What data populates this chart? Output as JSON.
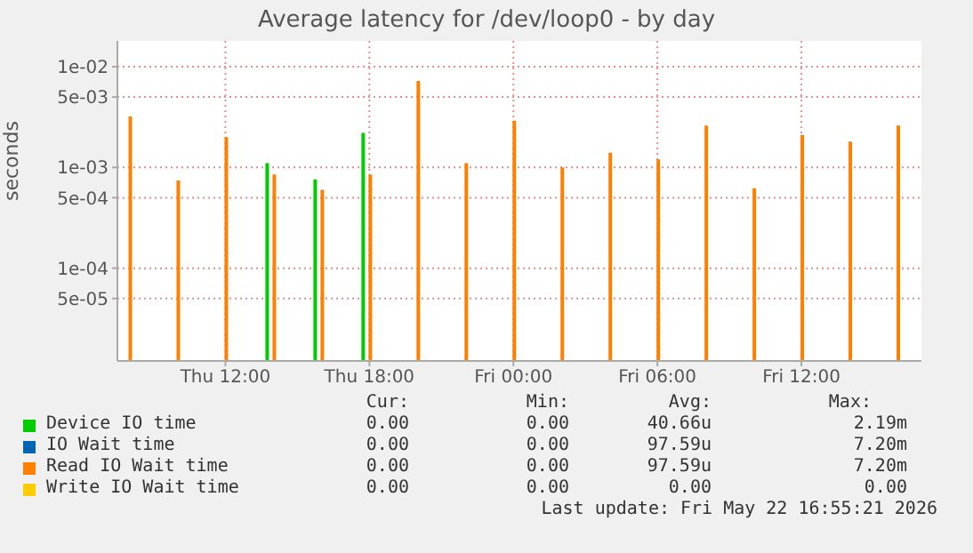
{
  "chart_data": {
    "type": "bar",
    "title": "Average latency for /dev/loop0 - by day",
    "ylabel": "seconds",
    "x": [
      "2026-05-21T08:00",
      "2026-05-21T10:00",
      "2026-05-21T12:00",
      "2026-05-21T14:00",
      "2026-05-21T16:00",
      "2026-05-21T18:00",
      "2026-05-21T20:00",
      "2026-05-21T22:00",
      "2026-05-22T00:00",
      "2026-05-22T02:00",
      "2026-05-22T04:00",
      "2026-05-22T06:00",
      "2026-05-22T08:00",
      "2026-05-22T10:00",
      "2026-05-22T12:00",
      "2026-05-22T14:00",
      "2026-05-22T16:00"
    ],
    "series": [
      {
        "name": "Device IO time",
        "color": "#00cc00",
        "values": [
          null,
          null,
          null,
          0.0011,
          0.00076,
          0.0022,
          null,
          null,
          null,
          null,
          null,
          null,
          null,
          null,
          null,
          null,
          null
        ]
      },
      {
        "name": "IO Wait time",
        "color": "#0066b3",
        "values": [
          null,
          null,
          null,
          null,
          null,
          null,
          null,
          null,
          null,
          null,
          null,
          null,
          null,
          null,
          null,
          null,
          null
        ]
      },
      {
        "name": "Read IO Wait time",
        "color": "#ff8000",
        "values": [
          0.0032,
          0.00074,
          0.002,
          0.00085,
          0.0006,
          0.00085,
          0.0072,
          0.0011,
          0.0029,
          0.001,
          0.0014,
          0.0012,
          0.0026,
          0.00062,
          0.0021,
          0.0018,
          0.0026
        ]
      },
      {
        "name": "Write IO Wait time",
        "color": "#ffcc00",
        "values": [
          null,
          null,
          null,
          null,
          null,
          null,
          null,
          null,
          null,
          null,
          null,
          null,
          null,
          null,
          null,
          null,
          null
        ]
      }
    ],
    "log": "y",
    "ylim": [
      1.2e-05,
      0.018
    ],
    "yticks": [
      {
        "value": 5e-05,
        "label": "5e-05"
      },
      {
        "value": 0.0001,
        "label": "1e-04"
      },
      {
        "value": 0.0005,
        "label": "5e-04"
      },
      {
        "value": 0.001,
        "label": "1e-03"
      },
      {
        "value": 0.005,
        "label": "5e-03"
      },
      {
        "value": 0.01,
        "label": "1e-02"
      }
    ],
    "xlim": [
      "2026-05-21T07:30",
      "2026-05-22T17:00"
    ],
    "xticks": [
      {
        "value": "2026-05-21T12:00",
        "label": "Thu 12:00"
      },
      {
        "value": "2026-05-21T18:00",
        "label": "Thu 18:00"
      },
      {
        "value": "2026-05-22T00:00",
        "label": "Fri 00:00"
      },
      {
        "value": "2026-05-22T06:00",
        "label": "Fri 06:00"
      },
      {
        "value": "2026-05-22T12:00",
        "label": "Fri 12:00"
      }
    ],
    "grid": true,
    "legend": "bottom",
    "annotations": [
      "Cur:",
      "Min:",
      "Avg:",
      "Max:",
      "0.00",
      "0.00",
      "40.66u",
      "2.19m",
      "0.00",
      "0.00",
      "97.59u",
      "7.20m",
      "0.00",
      "0.00",
      "97.59u",
      "7.20m",
      "0.00",
      "0.00",
      "0.00",
      "0.00",
      "Last update: Fri May 22 16:55:21 2026"
    ]
  }
}
